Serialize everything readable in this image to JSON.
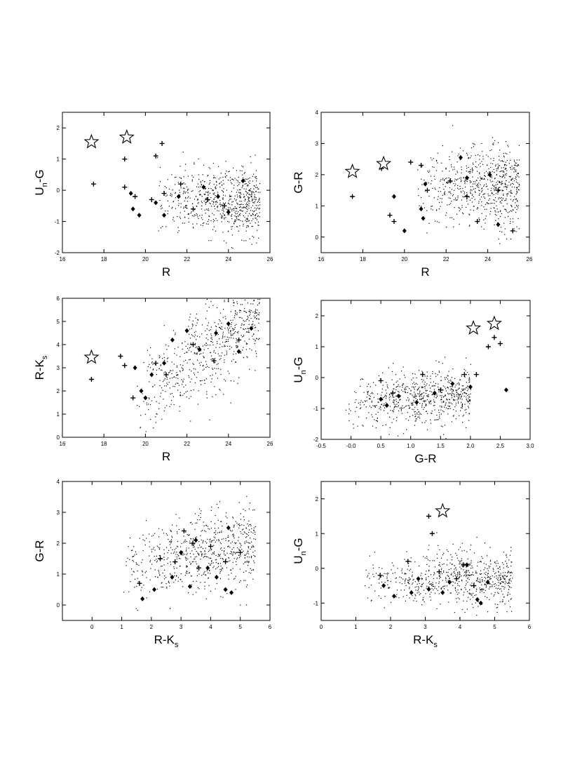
{
  "figure": {
    "panels": [
      "R vs Un-G",
      "R vs G-R",
      "R vs R-Ks",
      "G-R vs Un-G",
      "R-Ks vs G-R",
      "R-Ks vs Un-G"
    ]
  },
  "chart_data": [
    {
      "type": "scatter",
      "xlabel": "R",
      "ylabel": {
        "main": "U",
        "sub": "n",
        "rest": "-G"
      },
      "xlim": [
        16,
        26
      ],
      "ylim": [
        -2,
        2.5
      ],
      "xticks": [
        16,
        18,
        20,
        22,
        24,
        26
      ],
      "yticks": [
        -2,
        -1,
        0,
        1,
        2
      ],
      "field": {
        "x": [
          20.5,
          25.5
        ],
        "y": [
          -1.5,
          0.8
        ],
        "corr": 0
      },
      "grid": false,
      "stars": [
        {
          "x": 17.4,
          "y": 1.55
        },
        {
          "x": 19.1,
          "y": 1.7
        }
      ],
      "crosses": [
        {
          "x": 17.4,
          "y": 1.6
        },
        {
          "x": 17.5,
          "y": 0.2
        },
        {
          "x": 19.0,
          "y": 1.0
        },
        {
          "x": 19.0,
          "y": 0.1
        },
        {
          "x": 19.5,
          "y": -0.2
        },
        {
          "x": 20.3,
          "y": -0.3
        },
        {
          "x": 20.5,
          "y": 1.1
        },
        {
          "x": 20.8,
          "y": 1.5
        },
        {
          "x": 20.9,
          "y": -0.1
        },
        {
          "x": 21.7,
          "y": 0.2
        },
        {
          "x": 22.3,
          "y": -0.6
        },
        {
          "x": 23.0,
          "y": -0.3
        },
        {
          "x": 23.8,
          "y": -0.5
        }
      ],
      "diamonds": [
        {
          "x": 19.3,
          "y": -0.1
        },
        {
          "x": 19.4,
          "y": -0.6
        },
        {
          "x": 19.7,
          "y": -0.8
        },
        {
          "x": 20.5,
          "y": -0.4
        },
        {
          "x": 20.9,
          "y": -0.8
        },
        {
          "x": 21.6,
          "y": -0.2
        },
        {
          "x": 22.8,
          "y": 0.1
        },
        {
          "x": 23.5,
          "y": -0.2
        },
        {
          "x": 24.0,
          "y": -0.7
        },
        {
          "x": 24.7,
          "y": 0.3
        }
      ]
    },
    {
      "type": "scatter",
      "xlabel": "R",
      "ylabel": {
        "main": "G-R",
        "sub": "",
        "rest": ""
      },
      "xlim": [
        16,
        26
      ],
      "ylim": [
        -0.5,
        4
      ],
      "xticks": [
        16,
        18,
        20,
        22,
        24,
        26
      ],
      "yticks": [
        0,
        1,
        2,
        3,
        4
      ],
      "field": {
        "x": [
          20.5,
          25.5
        ],
        "y": [
          0.2,
          3.0
        ],
        "corr": 0
      },
      "grid": false,
      "stars": [
        {
          "x": 17.5,
          "y": 2.1
        },
        {
          "x": 19.0,
          "y": 2.35
        }
      ],
      "crosses": [
        {
          "x": 17.5,
          "y": 1.3
        },
        {
          "x": 18.9,
          "y": 2.2
        },
        {
          "x": 19.3,
          "y": 0.7
        },
        {
          "x": 19.5,
          "y": 0.5
        },
        {
          "x": 20.3,
          "y": 2.4
        },
        {
          "x": 20.8,
          "y": 2.3
        },
        {
          "x": 21.1,
          "y": 1.5
        },
        {
          "x": 22.2,
          "y": 1.8
        },
        {
          "x": 23.0,
          "y": 1.3
        },
        {
          "x": 23.5,
          "y": 0.5
        },
        {
          "x": 24.5,
          "y": 1.5
        },
        {
          "x": 25.2,
          "y": 0.2
        }
      ],
      "diamonds": [
        {
          "x": 19.5,
          "y": 1.3
        },
        {
          "x": 20.0,
          "y": 0.2
        },
        {
          "x": 20.8,
          "y": 0.9
        },
        {
          "x": 20.9,
          "y": 0.6
        },
        {
          "x": 21.0,
          "y": 1.7
        },
        {
          "x": 22.7,
          "y": 2.55
        },
        {
          "x": 23.0,
          "y": 1.9
        },
        {
          "x": 24.1,
          "y": 2.0
        },
        {
          "x": 24.5,
          "y": 0.4
        }
      ]
    },
    {
      "type": "scatter",
      "xlabel": "R",
      "ylabel": {
        "main": "R-K",
        "sub": "s",
        "rest": ""
      },
      "xlim": [
        16,
        26
      ],
      "ylim": [
        0,
        6
      ],
      "xticks": [
        16,
        18,
        20,
        22,
        24,
        26
      ],
      "yticks": [
        0,
        1,
        2,
        3,
        4,
        5,
        6
      ],
      "field": {
        "x": [
          19.5,
          25.5
        ],
        "y": [
          1.2,
          5.8
        ],
        "corr": 0.85
      },
      "grid": false,
      "stars": [
        {
          "x": 17.4,
          "y": 3.45
        }
      ],
      "crosses": [
        {
          "x": 17.4,
          "y": 2.5
        },
        {
          "x": 18.8,
          "y": 3.5
        },
        {
          "x": 19.0,
          "y": 3.1
        },
        {
          "x": 19.4,
          "y": 1.7
        },
        {
          "x": 20.5,
          "y": 3.2
        },
        {
          "x": 21.0,
          "y": 2.7
        },
        {
          "x": 22.3,
          "y": 4.0
        },
        {
          "x": 23.3,
          "y": 3.3
        },
        {
          "x": 24.5,
          "y": 4.2
        }
      ],
      "diamonds": [
        {
          "x": 19.5,
          "y": 3.0
        },
        {
          "x": 19.8,
          "y": 2.0
        },
        {
          "x": 20.0,
          "y": 1.7
        },
        {
          "x": 20.3,
          "y": 2.7
        },
        {
          "x": 20.9,
          "y": 3.2
        },
        {
          "x": 21.3,
          "y": 4.2
        },
        {
          "x": 22.0,
          "y": 4.6
        },
        {
          "x": 22.6,
          "y": 3.8
        },
        {
          "x": 23.4,
          "y": 4.5
        },
        {
          "x": 24.0,
          "y": 4.9
        },
        {
          "x": 24.5,
          "y": 3.7
        },
        {
          "x": 25.1,
          "y": 4.7
        }
      ]
    },
    {
      "type": "scatter",
      "xlabel": "G-R",
      "ylabel": {
        "main": "U",
        "sub": "n",
        "rest": "-G"
      },
      "xlim": [
        -0.5,
        3.0
      ],
      "ylim": [
        -2,
        2.5
      ],
      "xticks": [
        -0.5,
        0.0,
        0.5,
        1.0,
        1.5,
        2.0,
        2.5,
        3.0
      ],
      "xticklabels": [
        "-0.5",
        "-0.0",
        "0.5",
        "1.0",
        "1.5",
        "2.0",
        "2.5",
        "3.0"
      ],
      "yticks": [
        -2,
        -1,
        0,
        1,
        2
      ],
      "field": {
        "x": [
          -0.1,
          2.0
        ],
        "y": [
          -1.6,
          0.3
        ],
        "corr": 0.2
      },
      "grid": false,
      "stars": [
        {
          "x": 2.05,
          "y": 1.6
        },
        {
          "x": 2.4,
          "y": 1.75
        }
      ],
      "crosses": [
        {
          "x": 0.5,
          "y": -0.1
        },
        {
          "x": 0.7,
          "y": -0.5
        },
        {
          "x": 1.2,
          "y": 0.1
        },
        {
          "x": 1.5,
          "y": -0.4
        },
        {
          "x": 1.9,
          "y": 0.1
        },
        {
          "x": 2.1,
          "y": 0.1
        },
        {
          "x": 2.3,
          "y": 1.0
        },
        {
          "x": 2.4,
          "y": 1.3
        },
        {
          "x": 2.5,
          "y": 1.1
        }
      ],
      "diamonds": [
        {
          "x": 0.5,
          "y": -0.7
        },
        {
          "x": 0.6,
          "y": -0.9
        },
        {
          "x": 0.8,
          "y": -0.6
        },
        {
          "x": 1.1,
          "y": -0.8
        },
        {
          "x": 1.4,
          "y": -0.5
        },
        {
          "x": 1.7,
          "y": -0.2
        },
        {
          "x": 2.0,
          "y": -0.3
        },
        {
          "x": 2.6,
          "y": -0.4
        }
      ]
    },
    {
      "type": "scatter",
      "xlabel": {
        "main": "R-K",
        "sub": "s",
        "rest": ""
      },
      "ylabel": {
        "main": "G-R",
        "sub": "",
        "rest": ""
      },
      "xlim": [
        -1,
        6
      ],
      "ylim": [
        -0.5,
        4
      ],
      "xticks": [
        0,
        1,
        2,
        3,
        4,
        5,
        6
      ],
      "yticks": [
        0,
        1,
        2,
        3,
        4
      ],
      "field": {
        "x": [
          1.0,
          5.5
        ],
        "y": [
          0.2,
          3.0
        ],
        "corr": 0.3
      },
      "grid": false,
      "stars": [],
      "crosses": [
        {
          "x": 1.6,
          "y": 0.7
        },
        {
          "x": 2.3,
          "y": 1.5
        },
        {
          "x": 2.8,
          "y": 1.4
        },
        {
          "x": 3.1,
          "y": 2.4
        },
        {
          "x": 3.4,
          "y": 2.0
        },
        {
          "x": 3.6,
          "y": 1.2
        },
        {
          "x": 4.0,
          "y": 1.9
        },
        {
          "x": 4.5,
          "y": 1.4
        },
        {
          "x": 5.0,
          "y": 1.7
        }
      ],
      "diamonds": [
        {
          "x": 1.7,
          "y": 0.2
        },
        {
          "x": 2.1,
          "y": 0.5
        },
        {
          "x": 2.7,
          "y": 0.9
        },
        {
          "x": 3.0,
          "y": 1.7
        },
        {
          "x": 3.3,
          "y": 0.6
        },
        {
          "x": 3.5,
          "y": 2.1
        },
        {
          "x": 3.9,
          "y": 1.2
        },
        {
          "x": 4.2,
          "y": 0.9
        },
        {
          "x": 4.5,
          "y": 0.5
        },
        {
          "x": 4.6,
          "y": 2.5
        },
        {
          "x": 4.7,
          "y": 0.4
        }
      ]
    },
    {
      "type": "scatter",
      "xlabel": {
        "main": "R-K",
        "sub": "s",
        "rest": ""
      },
      "ylabel": {
        "main": "U",
        "sub": "n",
        "rest": "-G"
      },
      "xlim": [
        0,
        6
      ],
      "ylim": [
        -1.5,
        2.5
      ],
      "xticks": [
        0,
        1,
        2,
        3,
        4,
        5,
        6
      ],
      "yticks": [
        -1,
        0,
        1,
        2
      ],
      "field": {
        "x": [
          1.2,
          5.5
        ],
        "y": [
          -1.2,
          0.6
        ],
        "corr": 0
      },
      "grid": false,
      "stars": [
        {
          "x": 3.5,
          "y": 1.65
        }
      ],
      "crosses": [
        {
          "x": 1.7,
          "y": -0.2
        },
        {
          "x": 2.5,
          "y": 0.2
        },
        {
          "x": 3.1,
          "y": 1.5
        },
        {
          "x": 3.2,
          "y": 1.0
        },
        {
          "x": 3.4,
          "y": -0.1
        },
        {
          "x": 3.9,
          "y": -0.3
        },
        {
          "x": 4.1,
          "y": 0.1
        },
        {
          "x": 4.4,
          "y": -0.5
        }
      ],
      "diamonds": [
        {
          "x": 1.8,
          "y": -0.5
        },
        {
          "x": 2.1,
          "y": -0.8
        },
        {
          "x": 2.6,
          "y": -0.7
        },
        {
          "x": 2.8,
          "y": -0.3
        },
        {
          "x": 3.1,
          "y": -0.6
        },
        {
          "x": 3.5,
          "y": -0.7
        },
        {
          "x": 3.7,
          "y": -0.4
        },
        {
          "x": 4.2,
          "y": 0.1
        },
        {
          "x": 4.5,
          "y": -0.9
        },
        {
          "x": 4.6,
          "y": -1.0
        },
        {
          "x": 4.8,
          "y": -0.4
        }
      ]
    }
  ]
}
